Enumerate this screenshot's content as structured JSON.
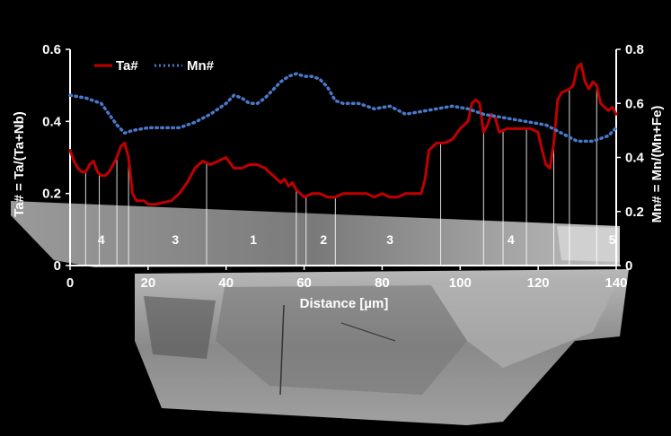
{
  "chart_data": {
    "type": "line",
    "xlabel": "Distance [µm]",
    "ylabel_left": "Ta# = Ta/(Ta+Nb)",
    "ylabel_right": "Mn# = Mn/(Mn+Fe)",
    "xlim": [
      0,
      140
    ],
    "ylim_left": [
      0,
      0.6
    ],
    "ylim_right": [
      0,
      0.8
    ],
    "x_ticks": [
      "0",
      "20",
      "40",
      "60",
      "80",
      "100",
      "120",
      "140"
    ],
    "y_ticks_left": [
      "0",
      "0.2",
      "0.4",
      "0.6"
    ],
    "y_ticks_right": [
      "0",
      "0.2",
      "0.4",
      "0.6",
      "0.8"
    ],
    "legend_position": "top-left",
    "series": [
      {
        "name": "Ta#",
        "axis": "left",
        "color": "#c00000",
        "style": "solid",
        "x": [
          0,
          1,
          2,
          3,
          4,
          5,
          6,
          7,
          8,
          9,
          10,
          11,
          12,
          13,
          14,
          15,
          16,
          17,
          18,
          19,
          20,
          22,
          24,
          26,
          28,
          30,
          32,
          34,
          36,
          38,
          40,
          42,
          44,
          46,
          48,
          50,
          52,
          54,
          55,
          56,
          57,
          58,
          60,
          62,
          64,
          66,
          68,
          70,
          72,
          74,
          76,
          78,
          80,
          82,
          84,
          86,
          88,
          90,
          91,
          92,
          94,
          96,
          98,
          100,
          102,
          103,
          104,
          105,
          106,
          107,
          108,
          109,
          110,
          112,
          114,
          116,
          118,
          120,
          121,
          122,
          123,
          124,
          125,
          126,
          128,
          129,
          130,
          131,
          132,
          133,
          134,
          135,
          136,
          137,
          138,
          139,
          140
        ],
        "y": [
          0.32,
          0.29,
          0.27,
          0.26,
          0.26,
          0.28,
          0.29,
          0.26,
          0.25,
          0.25,
          0.26,
          0.28,
          0.3,
          0.33,
          0.34,
          0.3,
          0.2,
          0.18,
          0.18,
          0.18,
          0.17,
          0.17,
          0.175,
          0.18,
          0.2,
          0.23,
          0.27,
          0.29,
          0.28,
          0.29,
          0.3,
          0.27,
          0.27,
          0.28,
          0.28,
          0.27,
          0.25,
          0.23,
          0.24,
          0.22,
          0.23,
          0.21,
          0.19,
          0.2,
          0.2,
          0.19,
          0.19,
          0.2,
          0.2,
          0.2,
          0.2,
          0.19,
          0.2,
          0.19,
          0.19,
          0.2,
          0.2,
          0.2,
          0.24,
          0.32,
          0.34,
          0.34,
          0.35,
          0.38,
          0.4,
          0.45,
          0.46,
          0.45,
          0.37,
          0.39,
          0.42,
          0.41,
          0.37,
          0.38,
          0.38,
          0.38,
          0.38,
          0.37,
          0.32,
          0.28,
          0.27,
          0.34,
          0.46,
          0.48,
          0.49,
          0.5,
          0.55,
          0.56,
          0.51,
          0.49,
          0.51,
          0.5,
          0.45,
          0.44,
          0.43,
          0.44,
          0.42
        ]
      },
      {
        "name": "Mn#",
        "axis": "right",
        "color": "#4a78c8",
        "style": "dotted",
        "x": [
          0,
          4,
          8,
          12,
          14,
          16,
          20,
          24,
          28,
          32,
          36,
          40,
          42,
          44,
          46,
          48,
          50,
          52,
          54,
          56,
          58,
          60,
          62,
          64,
          66,
          68,
          70,
          74,
          78,
          82,
          86,
          90,
          94,
          98,
          102,
          106,
          110,
          114,
          118,
          122,
          126,
          130,
          134,
          138,
          140
        ],
        "y": [
          0.63,
          0.62,
          0.6,
          0.52,
          0.49,
          0.5,
          0.51,
          0.51,
          0.51,
          0.53,
          0.56,
          0.6,
          0.63,
          0.62,
          0.6,
          0.6,
          0.62,
          0.65,
          0.68,
          0.7,
          0.71,
          0.7,
          0.7,
          0.69,
          0.66,
          0.61,
          0.6,
          0.6,
          0.58,
          0.59,
          0.56,
          0.57,
          0.58,
          0.59,
          0.58,
          0.56,
          0.55,
          0.54,
          0.53,
          0.52,
          0.49,
          0.46,
          0.46,
          0.48,
          0.51
        ]
      }
    ],
    "zone_boundaries": [
      4,
      7.5,
      12,
      15,
      35,
      58,
      60.5,
      68,
      95,
      106,
      111,
      117,
      124,
      128,
      135
    ],
    "zone_labels": [
      {
        "label": "4",
        "x": 8
      },
      {
        "label": "3",
        "x": 27
      },
      {
        "label": "1",
        "x": 47
      },
      {
        "label": "2",
        "x": 65
      },
      {
        "label": "3",
        "x": 82
      },
      {
        "label": "4",
        "x": 113
      },
      {
        "label": "5",
        "x": 139
      }
    ]
  }
}
